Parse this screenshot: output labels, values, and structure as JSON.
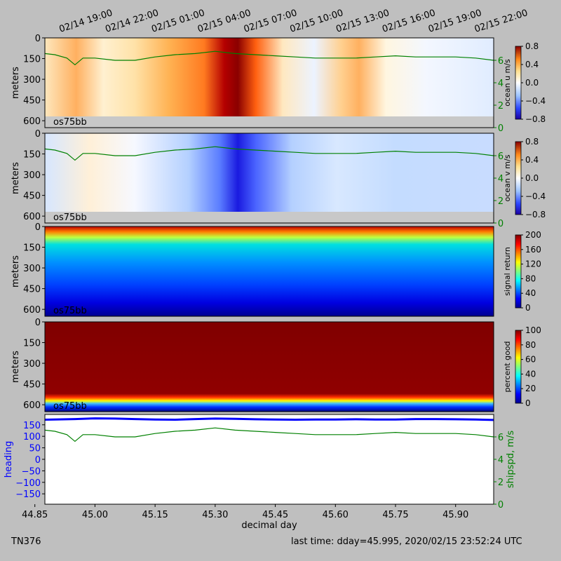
{
  "figure": {
    "cruise": "TN376",
    "last_time": "last time: dday=45.995,  2020/02/15 23:52:24 UTC",
    "background": "#bfbfbf"
  },
  "chart_data": [
    {
      "type": "heatmap",
      "panel": "ocean u",
      "colorbar_label": "ocean u m/s",
      "colormap": "blue-white-red",
      "clim": [
        -0.8,
        0.8
      ],
      "colorbar_ticks": [
        "0.8",
        "0.4",
        "0.0",
        "−0.4",
        "−0.8"
      ],
      "ylabel": "meters",
      "yticks": [
        "0",
        "150",
        "300",
        "450",
        "600"
      ],
      "ylim": [
        0,
        650
      ],
      "right_ticks": [
        "6",
        "4",
        "2",
        "0"
      ],
      "right_ylim": [
        0,
        8
      ],
      "instrument": "os75bb",
      "xlim": [
        44.875,
        45.995
      ],
      "top_ticks": [
        "02/14 19:00",
        "02/14 22:00",
        "02/15 01:00",
        "02/15 04:00",
        "02/15 07:00",
        "02/15 10:00",
        "02/15 13:00",
        "02/15 16:00",
        "02/15 19:00",
        "02/15 22:00"
      ]
    },
    {
      "type": "heatmap",
      "panel": "ocean v",
      "colorbar_label": "ocean v m/s",
      "colormap": "blue-white-red",
      "clim": [
        -0.8,
        0.8
      ],
      "colorbar_ticks": [
        "0.8",
        "0.4",
        "0.0",
        "−0.4",
        "−0.8"
      ],
      "ylabel": "meters",
      "yticks": [
        "0",
        "150",
        "300",
        "450",
        "600"
      ],
      "ylim": [
        0,
        650
      ],
      "right_ticks": [
        "6",
        "4",
        "2",
        "0"
      ],
      "right_ylim": [
        0,
        8
      ],
      "instrument": "os75bb",
      "xlim": [
        44.875,
        45.995
      ]
    },
    {
      "type": "heatmap",
      "panel": "signal return",
      "colorbar_label": "signal return",
      "colormap": "jet",
      "clim": [
        0,
        200
      ],
      "colorbar_ticks": [
        "200",
        "160",
        "120",
        "80",
        "40",
        "0"
      ],
      "ylabel": "meters",
      "yticks": [
        "0",
        "150",
        "300",
        "450",
        "600"
      ],
      "ylim": [
        0,
        650
      ],
      "instrument": "os75bb",
      "xlim": [
        44.875,
        45.995
      ]
    },
    {
      "type": "heatmap",
      "panel": "percent good",
      "colorbar_label": "percent good",
      "colormap": "jet",
      "clim": [
        0,
        100
      ],
      "colorbar_ticks": [
        "100",
        "80",
        "60",
        "40",
        "20",
        "0"
      ],
      "ylabel": "meters",
      "yticks": [
        "0",
        "150",
        "300",
        "450",
        "600"
      ],
      "ylim": [
        0,
        650
      ],
      "instrument": "os75bb",
      "xlim": [
        44.875,
        45.995
      ]
    },
    {
      "type": "line",
      "panel": "heading / shipspd",
      "xlabel": "decimal day",
      "xticks": [
        "44.85",
        "45.00",
        "45.15",
        "45.30",
        "45.45",
        "45.60",
        "45.75",
        "45.90"
      ],
      "xlim": [
        44.875,
        45.995
      ],
      "ylabel": "heading",
      "yticks": [
        "150",
        "100",
        "50",
        "0",
        "−50",
        "−100",
        "−150"
      ],
      "ylim": [
        -195,
        195
      ],
      "ylabel_right": "shipspd, m/s",
      "right_ticks": [
        "6",
        "4",
        "2",
        "0"
      ],
      "right_ylim": [
        0,
        8
      ],
      "series": [
        {
          "name": "heading",
          "color": "#0000ff",
          "x": [
            44.875,
            44.95,
            45.0,
            45.05,
            45.1,
            45.15,
            45.2,
            45.25,
            45.3,
            45.35,
            45.4,
            45.45,
            45.5,
            45.55,
            45.6,
            45.65,
            45.7,
            45.75,
            45.8,
            45.85,
            45.9,
            45.95,
            45.995
          ],
          "values": [
            172,
            175,
            178,
            177,
            175,
            173,
            172,
            175,
            177,
            176,
            174,
            173,
            172,
            173,
            173,
            174,
            173,
            173,
            175,
            175,
            174,
            173,
            171
          ]
        },
        {
          "name": "shipspd",
          "color": "#008000",
          "x": [
            44.875,
            44.9,
            44.93,
            44.95,
            44.97,
            45.0,
            45.05,
            45.1,
            45.15,
            45.2,
            45.25,
            45.3,
            45.35,
            45.4,
            45.45,
            45.5,
            45.55,
            45.6,
            45.65,
            45.7,
            45.75,
            45.8,
            45.85,
            45.9,
            45.95,
            45.995
          ],
          "values": [
            6.6,
            6.5,
            6.2,
            5.6,
            6.2,
            6.2,
            6.0,
            6.0,
            6.3,
            6.5,
            6.6,
            6.8,
            6.6,
            6.5,
            6.4,
            6.3,
            6.2,
            6.2,
            6.2,
            6.3,
            6.4,
            6.3,
            6.3,
            6.3,
            6.2,
            6.0
          ]
        }
      ]
    }
  ]
}
